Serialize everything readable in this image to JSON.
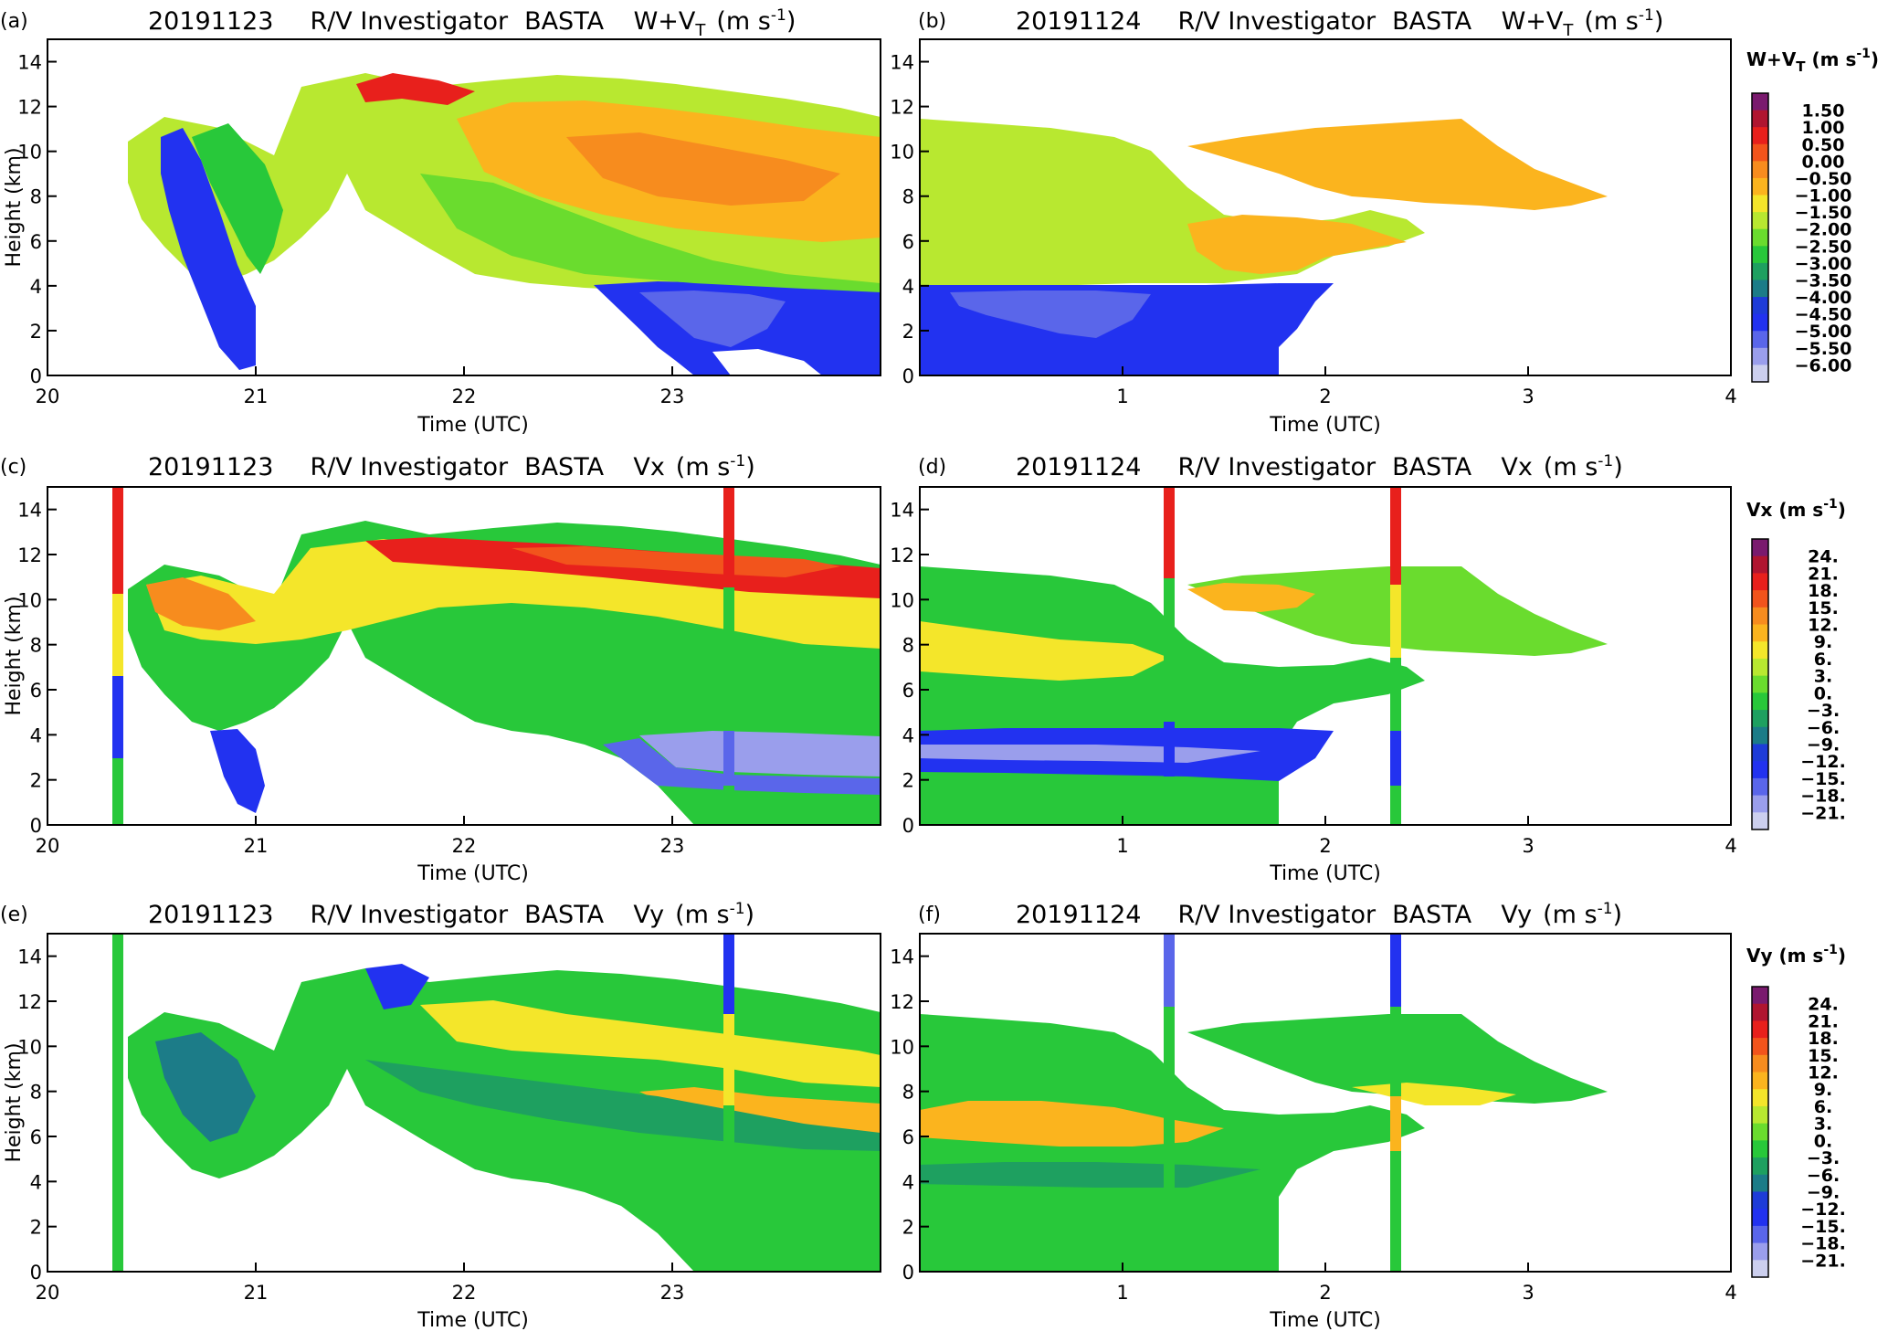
{
  "panels": [
    {
      "letter": "(a)",
      "date": "20191123",
      "platform": "R/V Investigator",
      "instrument": "BASTA",
      "variable": "W+V",
      "subscript": "T",
      "units": "(m s",
      "unit_exp": "-1",
      "unit_close": ")"
    },
    {
      "letter": "(b)",
      "date": "20191124",
      "platform": "R/V Investigator",
      "instrument": "BASTA",
      "variable": "W+V",
      "subscript": "T",
      "units": "(m s",
      "unit_exp": "-1",
      "unit_close": ")"
    },
    {
      "letter": "(c)",
      "date": "20191123",
      "platform": "R/V Investigator",
      "instrument": "BASTA",
      "variable": "Vx",
      "subscript": "",
      "units": "(m s",
      "unit_exp": "-1",
      "unit_close": ")"
    },
    {
      "letter": "(d)",
      "date": "20191124",
      "platform": "R/V Investigator",
      "instrument": "BASTA",
      "variable": "Vx",
      "subscript": "",
      "units": "(m s",
      "unit_exp": "-1",
      "unit_close": ")"
    },
    {
      "letter": "(e)",
      "date": "20191123",
      "platform": "R/V Investigator",
      "instrument": "BASTA",
      "variable": "Vy",
      "subscript": "",
      "units": "(m s",
      "unit_exp": "-1",
      "unit_close": ")"
    },
    {
      "letter": "(f)",
      "date": "20191124",
      "platform": "R/V Investigator",
      "instrument": "BASTA",
      "variable": "Vy",
      "subscript": "",
      "units": "(m s",
      "unit_exp": "-1",
      "unit_close": ")"
    }
  ],
  "axes": {
    "ylabel": "Height (km)",
    "xlabel": "Time (UTC)",
    "yticks": [
      "0",
      "2",
      "4",
      "6",
      "8",
      "10",
      "12",
      "14"
    ],
    "left_xticks": [
      "20",
      "21",
      "22",
      "23"
    ],
    "right_xticks": [
      "1",
      "2",
      "3",
      "4"
    ]
  },
  "colorbars": [
    {
      "title": "W+V",
      "subscript": "T",
      "units": " (m s",
      "unit_exp": "-1",
      "unit_close": ")",
      "labels": [
        "1.50",
        "1.00",
        "0.50",
        "0.00",
        "−0.50",
        "−1.00",
        "−1.50",
        "−2.00",
        "−2.50",
        "−3.00",
        "−3.50",
        "−4.00",
        "−4.50",
        "−5.00",
        "−5.50",
        "−6.00"
      ]
    },
    {
      "title": "Vx",
      "subscript": "",
      "units": " (m s",
      "unit_exp": "-1",
      "unit_close": ")",
      "labels": [
        "24.",
        "21.",
        "18.",
        "15.",
        "12.",
        "9.",
        "6.",
        "3.",
        "0.",
        "−3.",
        "−6.",
        "−9.",
        "−12.",
        "−15.",
        "−18.",
        "−21."
      ]
    },
    {
      "title": "Vy",
      "subscript": "",
      "units": " (m s",
      "unit_exp": "-1",
      "unit_close": ")",
      "labels": [
        "24.",
        "21.",
        "18.",
        "15.",
        "12.",
        "9.",
        "6.",
        "3.",
        "0.",
        "−3.",
        "−6.",
        "−9.",
        "−12.",
        "−15.",
        "−18.",
        "−21."
      ]
    }
  ],
  "palette": [
    "#7a1a6e",
    "#b01530",
    "#e8201c",
    "#f2541c",
    "#f78c1e",
    "#fbb41e",
    "#f4e62a",
    "#b8e830",
    "#6adc2e",
    "#28c83a",
    "#1ea060",
    "#1c7c88",
    "#1e3cd8",
    "#2232f0",
    "#5a66ea",
    "#9a9eec",
    "#cccfee"
  ],
  "chart_data": [
    {
      "type": "heatmap",
      "panel": "(a)",
      "title": "20191123 R/V Investigator BASTA W+VT (m s-1)",
      "xlabel": "Time (UTC)",
      "ylabel": "Height (km)",
      "xlim": [
        20,
        24
      ],
      "ylim": [
        0,
        15
      ],
      "colorbar": "W+VT (m s-1)",
      "crange": [
        -6.0,
        1.5
      ]
    },
    {
      "type": "heatmap",
      "panel": "(b)",
      "title": "20191124 R/V Investigator BASTA W+VT (m s-1)",
      "xlabel": "Time (UTC)",
      "ylabel": "Height (km)",
      "xlim": [
        0,
        4
      ],
      "ylim": [
        0,
        15
      ],
      "colorbar": "W+VT (m s-1)",
      "crange": [
        -6.0,
        1.5
      ]
    },
    {
      "type": "heatmap",
      "panel": "(c)",
      "title": "20191123 R/V Investigator BASTA Vx (m s-1)",
      "xlabel": "Time (UTC)",
      "ylabel": "Height (km)",
      "xlim": [
        20,
        24
      ],
      "ylim": [
        0,
        15
      ],
      "colorbar": "Vx (m s-1)",
      "crange": [
        -21,
        24
      ]
    },
    {
      "type": "heatmap",
      "panel": "(d)",
      "title": "20191124 R/V Investigator BASTA Vx (m s-1)",
      "xlabel": "Time (UTC)",
      "ylabel": "Height (km)",
      "xlim": [
        0,
        4
      ],
      "ylim": [
        0,
        15
      ],
      "colorbar": "Vx (m s-1)",
      "crange": [
        -21,
        24
      ]
    },
    {
      "type": "heatmap",
      "panel": "(e)",
      "title": "20191123 R/V Investigator BASTA Vy (m s-1)",
      "xlabel": "Time (UTC)",
      "ylabel": "Height (km)",
      "xlim": [
        20,
        24
      ],
      "ylim": [
        0,
        15
      ],
      "colorbar": "Vy (m s-1)",
      "crange": [
        -21,
        24
      ]
    },
    {
      "type": "heatmap",
      "panel": "(f)",
      "title": "20191124 R/V Investigator BASTA Vy (m s-1)",
      "xlabel": "Time (UTC)",
      "ylabel": "Height (km)",
      "xlim": [
        0,
        4
      ],
      "ylim": [
        0,
        15
      ],
      "colorbar": "Vy (m s-1)",
      "crange": [
        -21,
        24
      ]
    }
  ]
}
